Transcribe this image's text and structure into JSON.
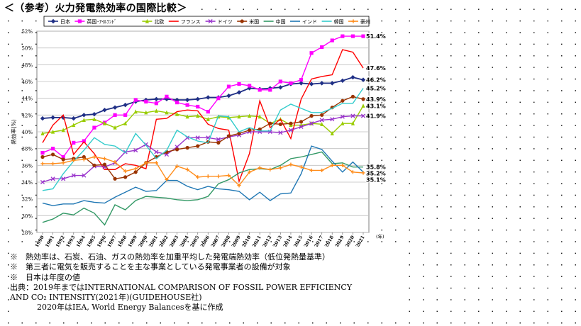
{
  "title": "＜（参考）火力発電熱効率の国際比較＞",
  "chart_data": {
    "type": "line",
    "title": "",
    "ylabel": "熱効率(%)",
    "xlabel": "",
    "x_unit_label": "(年)",
    "ylim": [
      28,
      52
    ],
    "y_ticks": [
      28,
      30,
      32,
      34,
      36,
      38,
      40,
      42,
      44,
      46,
      48,
      50,
      52
    ],
    "y_tick_labels": [
      "28%",
      "30%",
      "32%",
      "34%",
      "36%",
      "38%",
      "40%",
      "42%",
      "44%",
      "46%",
      "48%",
      "50%",
      "52%"
    ],
    "grid": true,
    "legend_position": "top",
    "categories": [
      "1990",
      "1991",
      "1992",
      "1993",
      "1994",
      "1995",
      "1996",
      "1997",
      "1998",
      "1999",
      "2000",
      "2001",
      "2002",
      "2003",
      "2004",
      "2005",
      "2006",
      "2007",
      "2008",
      "2009",
      "2010",
      "2011",
      "2012",
      "2013",
      "2014",
      "2015",
      "2016",
      "2017",
      "2018",
      "2019",
      "2020",
      "2021"
    ],
    "series": [
      {
        "name": "日本",
        "color": "#1f2f86",
        "marker": "diamond",
        "values": [
          41.6,
          41.7,
          41.7,
          41.6,
          42.0,
          42.1,
          42.6,
          42.9,
          43.2,
          43.6,
          43.8,
          43.9,
          43.9,
          43.8,
          43.8,
          43.9,
          44.1,
          44.1,
          44.3,
          44.7,
          45.2,
          45.1,
          45.2,
          45.3,
          45.7,
          45.8,
          45.7,
          45.8,
          45.8,
          46.1,
          46.5,
          46.2
        ],
        "end_label": "46.2%"
      },
      {
        "name": "英国･ｱｲﾙﾗﾝﾄﾞ",
        "color": "#ff00ff",
        "marker": "square",
        "values": [
          37.5,
          38.0,
          37.0,
          38.7,
          38.9,
          40.5,
          41.1,
          42.0,
          42.0,
          43.8,
          43.6,
          43.4,
          44.2,
          43.5,
          43.2,
          43.0,
          42.4,
          44.0,
          45.4,
          45.7,
          45.5,
          45.0,
          45.0,
          46.0,
          45.8,
          46.2,
          49.4,
          50.1,
          50.9,
          51.4,
          51.4,
          51.4
        ],
        "end_label": "51.4%"
      },
      {
        "name": "北欧",
        "color": "#99cc00",
        "marker": "triangle",
        "values": [
          39.8,
          40.0,
          40.2,
          40.8,
          41.4,
          41.5,
          41.0,
          40.5,
          41.0,
          42.4,
          42.3,
          42.5,
          42.3,
          42.1,
          41.8,
          41.9,
          41.5,
          41.8,
          41.7,
          41.8,
          41.9,
          41.8,
          41.0,
          41.5,
          40.8,
          40.8,
          41.0,
          40.9,
          39.8,
          41.0,
          41.0,
          43.1
        ],
        "end_label": "43.1%"
      },
      {
        "name": "フランス",
        "color": "#ff0000",
        "marker": "none",
        "values": [
          38.7,
          40.8,
          42.0,
          37.3,
          38.8,
          37.4,
          35.5,
          35.5,
          36.2,
          36.0,
          35.6,
          41.5,
          41.6,
          42.4,
          42.6,
          42.5,
          40.9,
          40.4,
          40.2,
          34.1,
          37.4,
          43.7,
          40.5,
          41.5,
          39.2,
          43.9,
          46.3,
          46.6,
          46.8,
          49.8,
          49.5,
          47.6
        ],
        "end_label": "47.6%"
      },
      {
        "name": "ドイツ",
        "color": "#9933cc",
        "marker": "x",
        "values": [
          34.0,
          34.4,
          34.4,
          34.8,
          34.8,
          35.9,
          35.8,
          36.3,
          37.6,
          37.8,
          38.5,
          37.6,
          37.3,
          38.2,
          39.3,
          39.3,
          39.3,
          39.1,
          39.4,
          39.6,
          40.0,
          40.0,
          40.0,
          39.9,
          40.2,
          40.6,
          41.0,
          41.4,
          41.5,
          41.8,
          41.9,
          41.9
        ],
        "end_label": "41.9%"
      },
      {
        "name": "米国",
        "color": "#993300",
        "marker": "circle",
        "values": [
          37.0,
          37.3,
          36.7,
          36.8,
          37.0,
          36.0,
          36.1,
          34.4,
          34.6,
          35.2,
          36.3,
          37.0,
          37.6,
          37.9,
          38.1,
          38.3,
          38.8,
          38.7,
          39.5,
          39.8,
          40.2,
          40.3,
          41.0,
          40.9,
          41.0,
          41.2,
          41.9,
          42.0,
          42.9,
          43.7,
          44.2,
          43.9
        ],
        "end_label": "43.9%"
      },
      {
        "name": "中国",
        "color": "#339966",
        "marker": "none",
        "values": [
          29.2,
          29.6,
          30.3,
          30.1,
          30.9,
          30.3,
          28.9,
          31.3,
          30.7,
          31.8,
          32.3,
          32.2,
          32.1,
          31.9,
          31.8,
          31.9,
          32.3,
          33.8,
          34.3,
          35.1,
          35.5,
          35.6,
          35.5,
          36.0,
          36.8,
          37.0,
          37.3,
          37.6,
          36.2,
          36.3,
          35.8,
          35.8
        ],
        "end_label": "35.8%"
      },
      {
        "name": "インド",
        "color": "#1f77b4",
        "marker": "none",
        "values": [
          31.5,
          31.2,
          31.4,
          31.4,
          31.8,
          31.6,
          31.5,
          32.2,
          32.8,
          33.4,
          32.9,
          33.0,
          34.2,
          34.2,
          33.5,
          33.1,
          33.5,
          33.2,
          33.1,
          32.9,
          31.9,
          32.8,
          31.8,
          32.6,
          32.7,
          35.0,
          38.3,
          37.9,
          36.5,
          35.2,
          36.4,
          35.2
        ],
        "end_label": "35.2%"
      },
      {
        "name": "韓国",
        "color": "#33cccc",
        "marker": "none",
        "values": [
          33.0,
          33.2,
          35.0,
          36.5,
          37.8,
          39.3,
          38.5,
          38.3,
          37.5,
          39.8,
          38.4,
          36.8,
          37.8,
          40.2,
          39.4,
          38.9,
          38.7,
          41.9,
          41.8,
          40.0,
          40.5,
          40.1,
          40.1,
          42.6,
          43.3,
          42.8,
          42.3,
          42.3,
          42.8,
          43.4,
          43.4,
          45.2
        ],
        "end_label": "45.2%"
      },
      {
        "name": "豪州",
        "color": "#ff8c1a",
        "marker": "plus",
        "values": [
          36.2,
          36.2,
          36.3,
          36.6,
          36.7,
          37.0,
          36.8,
          36.4,
          35.3,
          35.6,
          36.3,
          36.3,
          34.3,
          35.9,
          35.5,
          34.6,
          34.7,
          34.7,
          34.8,
          33.6,
          35.2,
          35.7,
          35.5,
          35.7,
          36.1,
          35.8,
          35.4,
          35.4,
          36.0,
          36.0,
          35.2,
          35.1
        ],
        "end_label": "35.1%"
      }
    ]
  },
  "notes": {
    "line1": "※　熱効率は、石炭、石油、ガスの熱効率を加重平均した発電端熱効率（低位発熱量基準）",
    "line2": "※　第三者に電気を販売することを主な事業としている発電事業者の設備が対象",
    "line3": "※　日本は年度の値",
    "line4": "出典：2019年まではINTERNATIONAL COMPARISON OF FOSSIL POWER EFFICIENCY",
    "line5": "AND CO₂ INTENSITY(2021年)(GUIDEHOUSE社)",
    "line6": "2020年はIEA, World Energy Balancesを基に作成"
  }
}
